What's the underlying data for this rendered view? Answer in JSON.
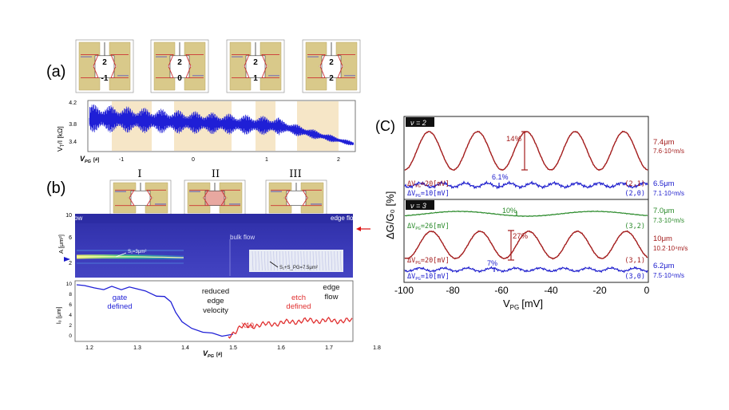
{
  "colors": {
    "dark_red": "#a31c1c",
    "blue": "#1a1acc",
    "green": "#2a8a2a",
    "gate_gold": "#d9c98a",
    "band": "#f6e6c7",
    "map_blue": "#3c3cb4"
  },
  "panel_a": {
    "label": "(a)",
    "devices": [
      {
        "top": "2",
        "bottom": "-1"
      },
      {
        "top": "2",
        "bottom": "0"
      },
      {
        "top": "2",
        "bottom": "1"
      },
      {
        "top": "2",
        "bottom": "2"
      }
    ],
    "ylabel": "V",
    "ylabel_sub": "T",
    "ylabel_rest": "/I [kΩ]",
    "yticks": [
      "4.2",
      "3.8",
      "3.4"
    ],
    "xlabel": "V",
    "xlabel_sub": "PG",
    "xlabel_unit": "[#]",
    "xticks": [
      "-1",
      "0",
      "1",
      "2"
    ]
  },
  "panel_b": {
    "label": "(b)",
    "roman": [
      "I",
      "II",
      "III"
    ],
    "map": {
      "ylabel": "A [μm²]",
      "yticks": [
        "10",
        "6",
        "2"
      ],
      "edge_flow_left": "edge flow",
      "edge_flow_right": "edge flow",
      "bulk_flow": "bulk flow",
      "s1": "S₁=3μm²",
      "s2": "S₁+S_PG=7.5μm²"
    },
    "lower": {
      "ylabel": "l₀ [μm]",
      "yticks": [
        "10",
        "8",
        "6",
        "4",
        "2",
        "0"
      ],
      "xlabel": "V",
      "xlabel_sub": "PG",
      "xlabel_unit": "[#]",
      "xticks": [
        "1.2",
        "1.3",
        "1.4",
        "1.5",
        "1.6",
        "1.7",
        "1.8"
      ],
      "gate_defined": "gate defined",
      "reduced": "reduced edge velocity",
      "etch_defined": "etch defined",
      "edge_flow": "edge flow",
      "x10": "X10"
    }
  },
  "panel_c": {
    "label": "(C)",
    "nu2_label": "ν = 2",
    "nu3_label": "ν = 3",
    "ylabel": "ΔG/G₀ [%]",
    "xlabel": "V",
    "xlabel_sub": "PG",
    "xlabel_unit": "[mV]",
    "xticks": [
      "-100",
      "-80",
      "-60",
      "-40",
      "-20",
      "0"
    ],
    "traces": [
      {
        "id": "2-1",
        "dv": "ΔV",
        "dv_sub": "PG",
        "dv_rest": "=20[mV]",
        "state": "(2,1)",
        "length": "7.4μm",
        "velocity": "7.6·10⁴m/s",
        "pct": "14%"
      },
      {
        "id": "2-0",
        "dv": "ΔV",
        "dv_sub": "PG",
        "dv_rest": "=10[mV]",
        "state": "(2,0)",
        "length": "6.5μm",
        "velocity": "7.1·10⁴m/s",
        "pct": "6.1%"
      },
      {
        "id": "3-2",
        "dv": "ΔV",
        "dv_sub": "PG",
        "dv_rest": "=26[mV]",
        "state": "(3,2)",
        "length": "7.0μm",
        "velocity": "7.3·10⁴m/s",
        "pct": "10%"
      },
      {
        "id": "3-1",
        "dv": "ΔV",
        "dv_sub": "PG",
        "dv_rest": "=20[mV]",
        "state": "(3,1)",
        "length": "10μm",
        "velocity": "10.2·10⁴m/s",
        "pct": "27%"
      },
      {
        "id": "3-0",
        "dv": "ΔV",
        "dv_sub": "PG",
        "dv_rest": "=10[mV]",
        "state": "(3,0)",
        "length": "6.2μm",
        "velocity": "7.5·10⁴m/s",
        "pct": "7%"
      }
    ]
  }
}
